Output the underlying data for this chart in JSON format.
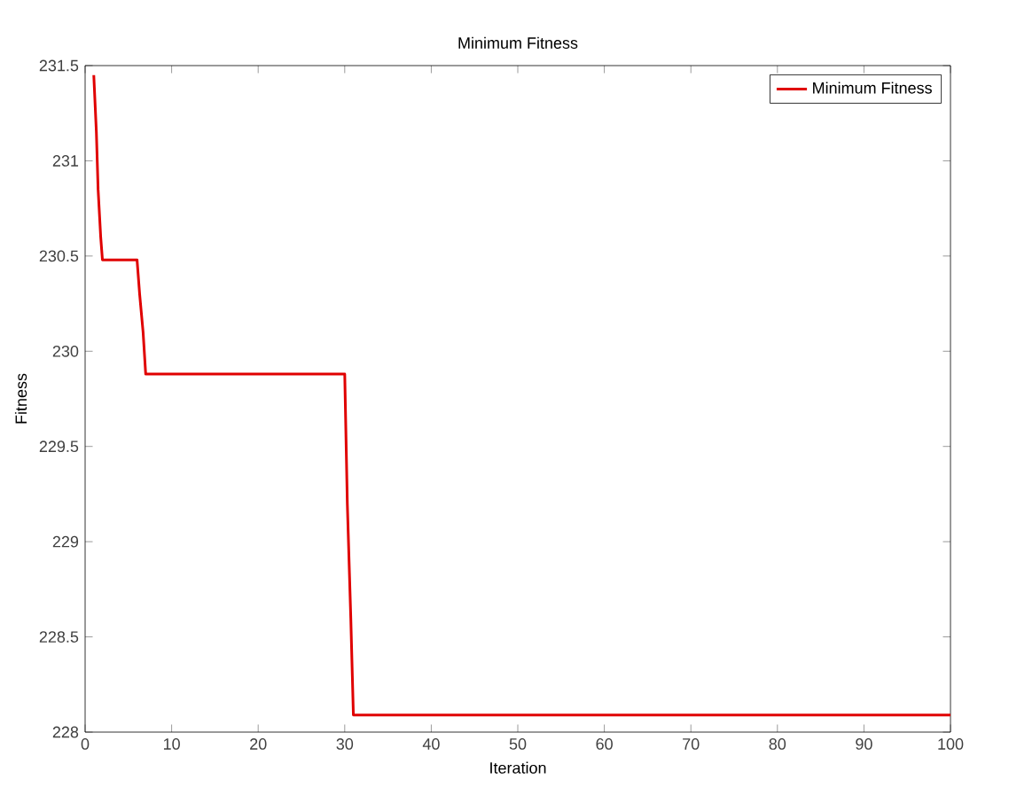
{
  "chart_data": {
    "type": "line",
    "title": "Minimum Fitness",
    "xlabel": "Iteration",
    "ylabel": "Fitness",
    "xlim": [
      0,
      100
    ],
    "xticks": [
      0,
      10,
      20,
      30,
      40,
      50,
      60,
      70,
      80,
      90,
      100
    ],
    "ylim": [
      228,
      231.5
    ],
    "yticks": [
      228,
      228.5,
      229,
      229.5,
      230,
      230.5,
      231,
      231.5
    ],
    "legend": "top right",
    "grid": false,
    "series": [
      {
        "name": "Minimum Fitness",
        "color": "#e00000",
        "x": [
          1,
          1.3,
          1.5,
          1.8,
          2,
          6,
          6.3,
          6.7,
          7,
          30,
          30.3,
          30.7,
          31,
          100
        ],
        "values": [
          231.45,
          231.15,
          230.85,
          230.6,
          230.48,
          230.48,
          230.3,
          230.1,
          229.88,
          229.88,
          229.2,
          228.6,
          228.09,
          228.09
        ]
      }
    ]
  }
}
